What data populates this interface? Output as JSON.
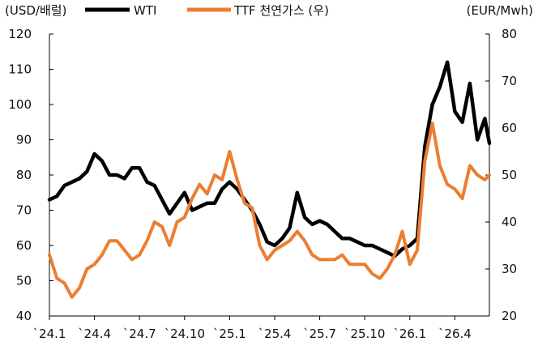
{
  "chart_data": {
    "type": "line",
    "left_axis_label": "(USD/배럴)",
    "right_axis_label": "(EUR/Mwh)",
    "legend_position": "top",
    "grid": false,
    "left_axis": {
      "range": [
        40,
        120
      ],
      "ticks": [
        "120",
        "110",
        "100",
        "90",
        "80",
        "70",
        "60",
        "50",
        "40"
      ]
    },
    "right_axis": {
      "range": [
        20,
        80
      ],
      "ticks": [
        "80",
        "70",
        "60",
        "50",
        "40",
        "30",
        "20"
      ]
    },
    "x_tick_labels": [
      "`24.1",
      "`24.4",
      "`24.7",
      "`24.10",
      "`25.1",
      "`25.4",
      "`25.7",
      "`25.10",
      "`26.1",
      "`26.4"
    ],
    "x_range": [
      0,
      29.3
    ],
    "series": [
      {
        "name": "WTI",
        "axis": "left",
        "color": "#000000",
        "x": [
          0,
          0.5,
          1,
          1.5,
          2,
          2.5,
          3,
          3.5,
          4,
          4.5,
          5,
          5.5,
          6,
          6.5,
          7,
          7.5,
          8,
          8.5,
          9,
          9.5,
          10,
          10.5,
          11,
          11.5,
          12,
          12.5,
          13,
          13.5,
          14,
          14.5,
          15,
          15.5,
          16,
          16.5,
          17,
          17.5,
          18,
          18.5,
          19,
          19.5,
          20,
          20.5,
          21,
          21.5,
          22,
          22.5,
          23,
          23.5,
          24,
          24.5,
          25,
          25.5,
          26,
          26.5,
          27,
          27.5,
          28,
          28.5,
          29,
          29.3
        ],
        "values": [
          73,
          74,
          77,
          78,
          79,
          81,
          86,
          84,
          80,
          80,
          79,
          82,
          82,
          78,
          77,
          73,
          69,
          72,
          75,
          70,
          71,
          72,
          72,
          76,
          78,
          76,
          73,
          70,
          66,
          61,
          60,
          62,
          65,
          75,
          68,
          66,
          67,
          66,
          64,
          62,
          62,
          61,
          60,
          60,
          59,
          58,
          57,
          59,
          60,
          62,
          88,
          100,
          105,
          112,
          98,
          95,
          106,
          90,
          96,
          89
        ]
      },
      {
        "name": "TTF 천연가스 (우)",
        "axis": "right",
        "color": "#ec7d31",
        "x": [
          0,
          0.5,
          1,
          1.5,
          2,
          2.5,
          3,
          3.5,
          4,
          4.5,
          5,
          5.5,
          6,
          6.5,
          7,
          7.5,
          8,
          8.5,
          9,
          9.5,
          10,
          10.5,
          11,
          11.5,
          12,
          12.5,
          13,
          13.5,
          14,
          14.5,
          15,
          15.5,
          16,
          16.5,
          17,
          17.5,
          18,
          18.5,
          19,
          19.5,
          20,
          20.5,
          21,
          21.5,
          22,
          22.5,
          23,
          23.5,
          24,
          24.5,
          25,
          25.5,
          26,
          26.5,
          27,
          27.5,
          28,
          28.5,
          29,
          29.3
        ],
        "values": [
          33,
          28,
          27,
          24,
          26,
          30,
          31,
          33,
          36,
          36,
          34,
          32,
          33,
          36,
          40,
          39,
          35,
          40,
          41,
          45,
          48,
          46,
          50,
          49,
          55,
          49,
          44,
          43,
          35,
          32,
          34,
          35,
          36,
          38,
          36,
          33,
          32,
          32,
          32,
          33,
          31,
          31,
          31,
          29,
          28,
          30,
          33,
          38,
          31,
          34,
          53,
          61,
          52,
          48,
          47,
          45,
          52,
          50,
          49,
          50
        ]
      }
    ]
  }
}
